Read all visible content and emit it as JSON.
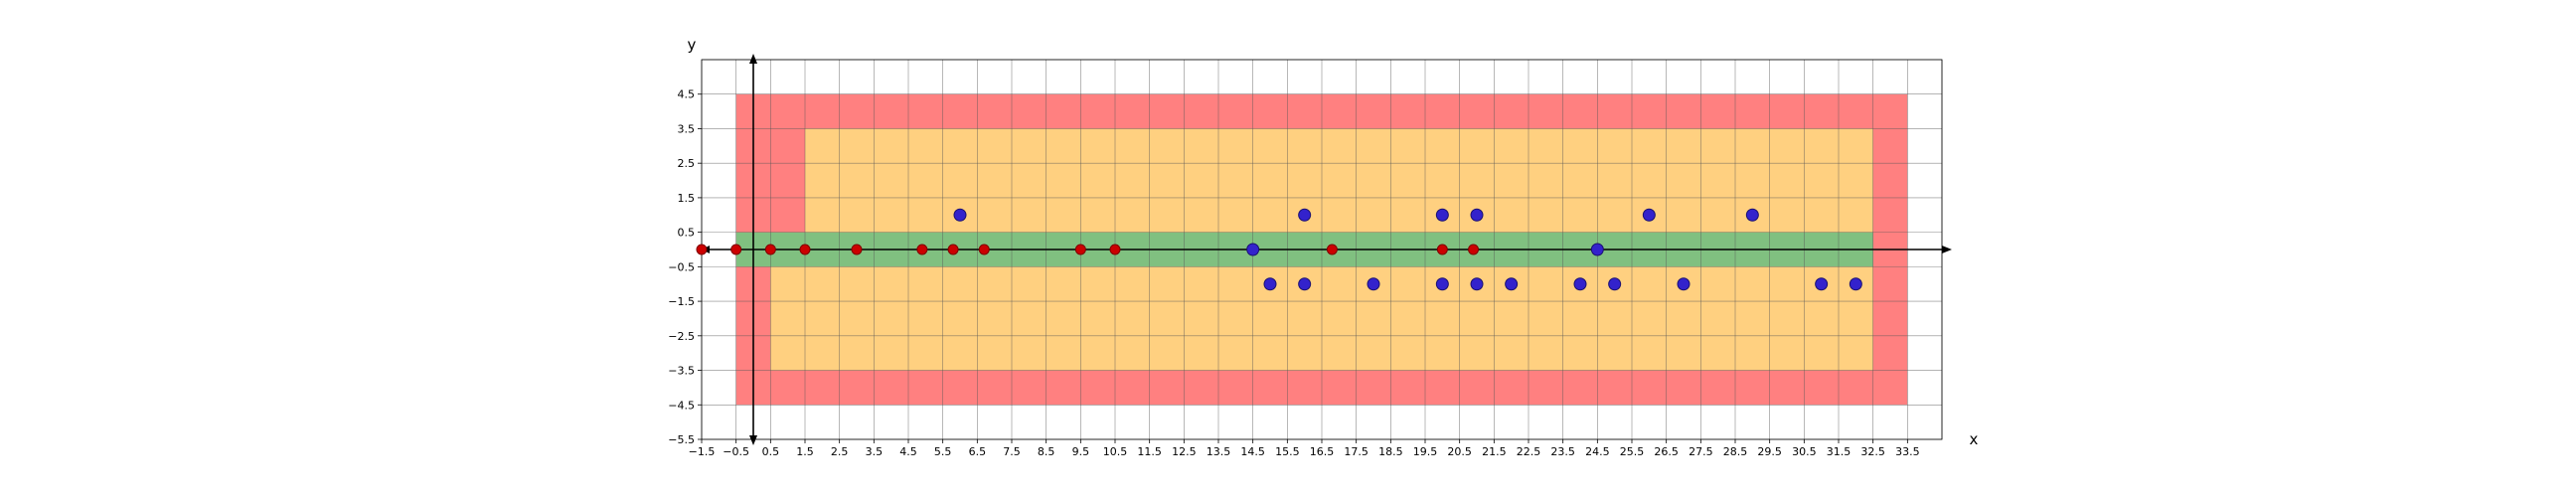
{
  "chart_data": {
    "type": "scatter",
    "title": "",
    "xlabel": "x",
    "ylabel": "y",
    "xlim": [
      -1.5,
      34.5
    ],
    "ylim": [
      -5.5,
      5.5
    ],
    "grid": true,
    "xticks": [
      -1.5,
      -0.5,
      0.5,
      1.5,
      2.5,
      3.5,
      4.5,
      5.5,
      6.5,
      7.5,
      8.5,
      9.5,
      10.5,
      11.5,
      12.5,
      13.5,
      14.5,
      15.5,
      16.5,
      17.5,
      18.5,
      19.5,
      20.5,
      21.5,
      22.5,
      23.5,
      24.5,
      25.5,
      26.5,
      27.5,
      28.5,
      29.5,
      30.5,
      31.5,
      32.5,
      33.5
    ],
    "xtick_labels": [
      "−1.5",
      "−0.5",
      "0.5",
      "1.5",
      "2.5",
      "3.5",
      "4.5",
      "5.5",
      "6.5",
      "7.5",
      "8.5",
      "9.5",
      "10.5",
      "11.5",
      "12.5",
      "13.5",
      "14.5",
      "15.5",
      "16.5",
      "17.5",
      "18.5",
      "19.5",
      "20.5",
      "21.5",
      "22.5",
      "23.5",
      "24.5",
      "25.5",
      "26.5",
      "27.5",
      "28.5",
      "29.5",
      "30.5",
      "31.5",
      "32.5",
      "33.5"
    ],
    "yticks": [
      -5.5,
      -4.5,
      -3.5,
      -2.5,
      -1.5,
      -0.5,
      0.5,
      1.5,
      2.5,
      3.5,
      4.5
    ],
    "ytick_labels": [
      "−5.5",
      "−4.5",
      "−3.5",
      "−2.5",
      "−1.5",
      "−0.5",
      "0.5",
      "1.5",
      "2.5",
      "3.5",
      "4.5"
    ],
    "regions": [
      {
        "name": "red-zone",
        "color": "#ff8080",
        "x": [
          -0.5,
          33.5
        ],
        "y": [
          -4.5,
          4.5
        ]
      },
      {
        "name": "orange-zone-upper",
        "color": "#ffd080",
        "x": [
          1.5,
          32.5
        ],
        "y": [
          0.5,
          3.5
        ]
      },
      {
        "name": "orange-zone-lower",
        "color": "#ffd080",
        "x": [
          0.5,
          32.5
        ],
        "y": [
          -3.5,
          -0.5
        ]
      },
      {
        "name": "green-band",
        "color": "#80c080",
        "x": [
          -0.5,
          32.5
        ],
        "y": [
          -0.5,
          0.5
        ]
      }
    ],
    "series": [
      {
        "color": "#3322cc",
        "edge_color": "#1a1070",
        "points": [
          [
            6,
            1
          ],
          [
            14.5,
            0
          ],
          [
            15,
            -1
          ],
          [
            16,
            1
          ],
          [
            16,
            -1
          ],
          [
            18,
            -1
          ],
          [
            20,
            1
          ],
          [
            20,
            -1
          ],
          [
            21,
            1
          ],
          [
            21,
            -1
          ],
          [
            22,
            -1
          ],
          [
            24,
            -1
          ],
          [
            24.5,
            0
          ],
          [
            25,
            -1
          ],
          [
            26,
            1
          ],
          [
            27,
            -1
          ],
          [
            29,
            1
          ],
          [
            31,
            -1
          ],
          [
            32,
            -1
          ]
        ]
      },
      {
        "color": "#cc0000",
        "edge_color": "#800000",
        "points": [
          [
            -1.5,
            0
          ],
          [
            -0.5,
            0
          ],
          [
            0.5,
            0
          ],
          [
            1.5,
            0
          ],
          [
            3,
            0
          ],
          [
            4.9,
            0
          ],
          [
            5.8,
            0
          ],
          [
            6.7,
            0
          ],
          [
            9.5,
            0
          ],
          [
            10.5,
            0
          ],
          [
            16.8,
            0
          ],
          [
            20,
            0
          ],
          [
            20.9,
            0
          ]
        ]
      }
    ]
  }
}
